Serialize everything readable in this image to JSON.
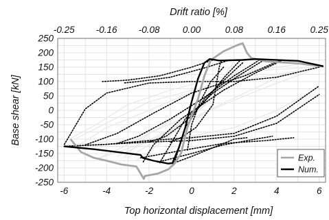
{
  "chart_data": {
    "type": "line",
    "top_axis": {
      "label": "Drift ratio [%]",
      "ticks": [
        "-0.25",
        "-0.16",
        "-0.08",
        "0.00",
        "0.08",
        "0.16",
        "0.25"
      ],
      "tick_positions_mm": [
        -6,
        -4,
        -2,
        0,
        2,
        4,
        6
      ]
    },
    "xlabel": "Top horizontal displacement [mm]",
    "ylabel": "Base shear [kN]",
    "xlim": [
      -6.3,
      6.3
    ],
    "ylim": [
      -250,
      250
    ],
    "xticks": [
      -6,
      -4,
      -2,
      0,
      2,
      4,
      6
    ],
    "yticks": [
      250,
      200,
      150,
      100,
      50,
      0,
      -50,
      -100,
      -150,
      -200,
      -250
    ],
    "grid": true,
    "legend": {
      "placement": "bottom-right",
      "entries": [
        {
          "label": "Exp.",
          "color": "#a6a6a6",
          "style": "solid"
        },
        {
          "label": "Num.",
          "color": "#000000",
          "style": "solid"
        }
      ]
    },
    "series": [
      {
        "name": "Exp.",
        "role": "backbone",
        "color": "#a6a6a6",
        "x": [
          -5.7,
          -5.2,
          -4.6,
          -4.0,
          -3.3,
          -2.6,
          -2.25,
          -2.2,
          -1.6,
          -1.1,
          -0.8,
          -0.5,
          -0.2,
          0.3,
          0.6,
          0.9,
          1.5,
          2.1,
          2.4,
          2.6,
          2.8,
          3.5,
          5.0,
          6.2
        ],
        "y": [
          -100,
          -145,
          -165,
          -175,
          -188,
          -195,
          -238,
          -228,
          -220,
          -205,
          -185,
          -150,
          -60,
          40,
          120,
          175,
          205,
          225,
          233,
          200,
          182,
          170,
          163,
          152
        ]
      },
      {
        "name": "Exp. cycles",
        "role": "cycles",
        "color": "#e6e6e6",
        "paths": [
          {
            "x": [
              -3.2,
              -2.0,
              -0.8,
              0.3,
              1.5,
              2.8
            ],
            "y": [
              -165,
              -80,
              -40,
              0,
              80,
              150
            ]
          },
          {
            "x": [
              -2.6,
              -1.2,
              0.0,
              1.0,
              2.0
            ],
            "y": [
              -175,
              -100,
              -20,
              60,
              170
            ]
          },
          {
            "x": [
              -4.5,
              -3.0,
              -1.5,
              0.5,
              2.0,
              4.0
            ],
            "y": [
              -170,
              -120,
              -60,
              40,
              110,
              160
            ]
          },
          {
            "x": [
              -5.5,
              -4.0,
              -2.0,
              0.5,
              3.0,
              5.5
            ],
            "y": [
              -130,
              -60,
              0,
              80,
              140,
              165
            ]
          },
          {
            "x": [
              5.5,
              3.5,
              1.5,
              -0.5,
              -2.5,
              -4.5
            ],
            "y": [
              135,
              80,
              20,
              -50,
              -120,
              -170
            ]
          },
          {
            "x": [
              4.5,
              2.5,
              0.5,
              -1.5,
              -3.5
            ],
            "y": [
              130,
              60,
              -10,
              -90,
              -160
            ]
          },
          {
            "x": [
              6.0,
              4.0,
              2.0,
              0.0,
              -2.0,
              -5.5
            ],
            "y": [
              150,
              125,
              100,
              70,
              30,
              -100
            ]
          },
          {
            "x": [
              -6.0,
              -4.0,
              -2.0,
              0.0,
              2.0,
              4.0,
              6.0
            ],
            "y": [
              -120,
              -110,
              -100,
              -90,
              -60,
              0,
              80
            ]
          },
          {
            "x": [
              -6.0,
              -4.5,
              -3.0,
              -1.0,
              1.0,
              3.5,
              6.0
            ],
            "y": [
              -110,
              -50,
              20,
              70,
              110,
              140,
              150
            ]
          },
          {
            "x": [
              3.0,
              2.0,
              1.0,
              0.0,
              -1.0,
              -2.0,
              -3.0
            ],
            "y": [
              150,
              95,
              40,
              -20,
              -70,
              -120,
              -165
            ]
          },
          {
            "x": [
              2.2,
              1.2,
              0.2,
              -0.8,
              -1.8
            ],
            "y": [
              140,
              80,
              10,
              -60,
              -120
            ]
          }
        ]
      },
      {
        "name": "Num.",
        "role": "backbone",
        "color": "#000000",
        "x": [
          -6.0,
          -4.6,
          -2.4,
          -2.3,
          -1.8,
          -1.1,
          -0.9,
          -0.6,
          -0.3,
          0.0,
          0.3,
          0.6,
          0.85,
          1.3,
          2.4,
          3.0,
          5.0,
          6.2
        ],
        "y": [
          -125,
          -135,
          -155,
          -165,
          -175,
          -185,
          -183,
          -130,
          -60,
          30,
          110,
          165,
          178,
          173,
          175,
          178,
          172,
          153
        ]
      },
      {
        "name": "Num. cycles",
        "role": "cycles",
        "color": "#000000",
        "style": "dotted",
        "paths": [
          {
            "x": [
              -6.0,
              -4.5,
              -2.0,
              0.0,
              2.0,
              4.0,
              6.0
            ],
            "y": [
              -125,
              -120,
              -110,
              -105,
              -90,
              -45,
              55
            ]
          },
          {
            "x": [
              6.0,
              4.0,
              2.0,
              0.0,
              -2.0,
              -4.0,
              -5.0,
              -6.0
            ],
            "y": [
              150,
              115,
              100,
              100,
              95,
              60,
              5,
              -120
            ]
          },
          {
            "x": [
              -6.0,
              -4.0,
              -2.0,
              0.0,
              2.0,
              4.0,
              6.0
            ],
            "y": [
              -125,
              -118,
              -105,
              -95,
              -80,
              -20,
              85
            ]
          },
          {
            "x": [
              -1.0,
              -0.5,
              0.2,
              1.0,
              1.3,
              1.4
            ],
            "y": [
              -110,
              -95,
              -60,
              20,
              150,
              175
            ]
          },
          {
            "x": [
              -2.0,
              -1.2,
              -0.3,
              0.6,
              1.6,
              2.3
            ],
            "y": [
              -110,
              -90,
              -40,
              30,
              120,
              175
            ]
          },
          {
            "x": [
              -3.5,
              -2.5,
              -1.0,
              0.5,
              2.0,
              3.2
            ],
            "y": [
              -115,
              -90,
              -30,
              40,
              120,
              175
            ]
          },
          {
            "x": [
              -5.0,
              -3.5,
              -1.8,
              0.0,
              2.5,
              4.2
            ],
            "y": [
              -120,
              -80,
              -10,
              60,
              120,
              175
            ]
          },
          {
            "x": [
              4.3,
              3.0,
              1.5,
              -0.5,
              -1.8,
              -2.3
            ],
            "y": [
              175,
              130,
              70,
              -30,
              -120,
              -182
            ]
          },
          {
            "x": [
              3.3,
              2.2,
              1.0,
              -0.3,
              -1.0,
              -1.5
            ],
            "y": [
              170,
              120,
              60,
              -30,
              -120,
              -182
            ]
          },
          {
            "x": [
              2.4,
              1.6,
              0.6,
              -0.3,
              -0.8
            ],
            "y": [
              165,
              110,
              40,
              -60,
              -180
            ]
          },
          {
            "x": [
              1.5,
              0.9,
              0.4,
              0.0,
              -0.2
            ],
            "y": [
              150,
              100,
              30,
              -50,
              -140
            ]
          },
          {
            "x": [
              -0.9,
              0.0,
              1.0,
              2.0,
              2.6
            ],
            "y": [
              -185,
              -160,
              -130,
              -100,
              -95
            ]
          },
          {
            "x": [
              -1.6,
              0.0,
              1.5,
              3.0,
              3.8
            ],
            "y": [
              -180,
              -150,
              -120,
              -100,
              -90
            ]
          },
          {
            "x": [
              -2.4,
              -0.5,
              1.5,
              3.5,
              4.8
            ],
            "y": [
              -165,
              -140,
              -115,
              -105,
              -95
            ]
          },
          {
            "x": [
              1.0,
              0.0,
              -1.5,
              -3.0,
              -4.2
            ],
            "y": [
              175,
              150,
              120,
              105,
              100
            ]
          },
          {
            "x": [
              1.8,
              0.5,
              -1.0,
              -2.5,
              -3.2
            ],
            "y": [
              175,
              145,
              115,
              100,
              95
            ]
          }
        ]
      }
    ]
  }
}
